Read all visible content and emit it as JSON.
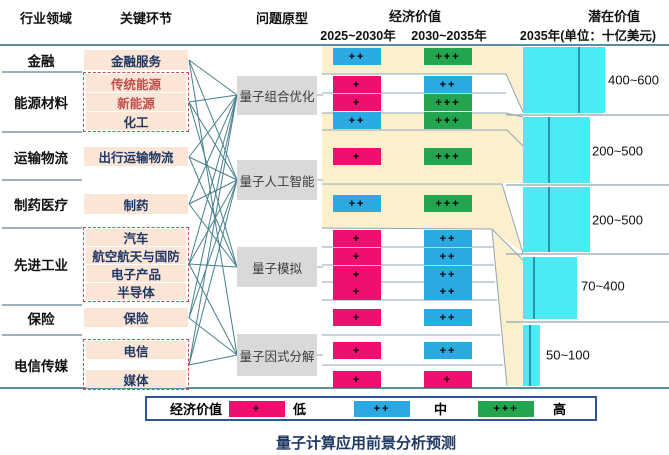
{
  "caption": "量子计算应用前景分析预测",
  "headers": {
    "industry": "行业领域",
    "segment": "关键环节",
    "prototype": "问题原型",
    "economic_value": "经济价值",
    "period_1": "2025~2030年",
    "period_2": "2030~2035年",
    "potential_value": "潜在价值",
    "potential_unit": "2035年(单位：十亿美元)"
  },
  "value_levels": {
    "+": {
      "label": "低",
      "color": "#F00E6E"
    },
    "++": {
      "label": "中",
      "color": "#2BAAE2"
    },
    "+++": {
      "label": "高",
      "color": "#23A44F"
    }
  },
  "industries": [
    {
      "label": "金融",
      "boxed": false,
      "segments": [
        {
          "label": "金融服务",
          "style": "navy",
          "v2025": "++",
          "v2030": "+++"
        }
      ]
    },
    {
      "label": "能源材料",
      "boxed": true,
      "segments": [
        {
          "label": "传统能源",
          "style": "red",
          "v2025": "+",
          "v2030": "++"
        },
        {
          "label": "新能源",
          "style": "red",
          "v2025": "+",
          "v2030": "+++"
        },
        {
          "label": "化工",
          "style": "navy",
          "v2025": "++",
          "v2030": "+++"
        }
      ]
    },
    {
      "label": "运输物流",
      "boxed": false,
      "segments": [
        {
          "label": "出行运输物流",
          "style": "navy",
          "v2025": "+",
          "v2030": "+++"
        }
      ]
    },
    {
      "label": "制药医疗",
      "boxed": false,
      "segments": [
        {
          "label": "制药",
          "style": "navy",
          "v2025": "++",
          "v2030": "+++"
        }
      ]
    },
    {
      "label": "先进工业",
      "boxed": true,
      "segments": [
        {
          "label": "汽车",
          "style": "navy",
          "v2025": "+",
          "v2030": "++"
        },
        {
          "label": "航空航天与国防",
          "style": "navy",
          "v2025": "+",
          "v2030": "++"
        },
        {
          "label": "电子产品",
          "style": "navy",
          "v2025": "+",
          "v2030": "++"
        },
        {
          "label": "半导体",
          "style": "navy",
          "v2025": "+",
          "v2030": "++"
        }
      ]
    },
    {
      "label": "保险",
      "boxed": false,
      "segments": [
        {
          "label": "保险",
          "style": "navy",
          "v2025": "+",
          "v2030": "++"
        }
      ]
    },
    {
      "label": "电信传媒",
      "boxed": true,
      "segments": [
        {
          "label": "电信",
          "style": "navy",
          "v2025": "+",
          "v2030": "++"
        },
        {
          "label": "媒体",
          "style": "navy",
          "v2025": "+",
          "v2030": "+"
        }
      ]
    }
  ],
  "prototypes": [
    "量子组合优化",
    "量子人工智能",
    "量子模拟",
    "量子因式分解"
  ],
  "flow_links": [
    [
      0,
      0
    ],
    [
      0,
      1
    ],
    [
      0,
      3
    ],
    [
      1,
      0
    ],
    [
      1,
      1
    ],
    [
      1,
      2
    ],
    [
      2,
      0
    ],
    [
      2,
      1
    ],
    [
      2,
      2
    ],
    [
      3,
      0
    ],
    [
      3,
      1
    ],
    [
      3,
      2
    ],
    [
      4,
      0
    ],
    [
      4,
      1
    ],
    [
      4,
      2
    ],
    [
      4,
      3
    ],
    [
      5,
      0
    ],
    [
      5,
      1
    ],
    [
      5,
      3
    ],
    [
      6,
      0
    ],
    [
      6,
      1
    ],
    [
      6,
      3
    ]
  ],
  "potential_bars": [
    {
      "range": "400~600"
    },
    {
      "range": "200~500"
    },
    {
      "range": "200~500"
    },
    {
      "range": "70~400"
    },
    {
      "range": "50~100"
    }
  ],
  "legend": {
    "title": "经济价值",
    "items": [
      {
        "symbol": "+",
        "label": "低"
      },
      {
        "symbol": "++",
        "label": "中"
      },
      {
        "symbol": "+++",
        "label": "高"
      }
    ]
  }
}
